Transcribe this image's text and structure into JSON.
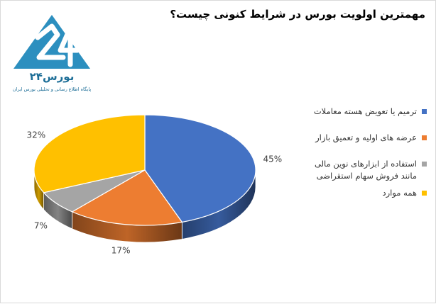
{
  "chart_data": {
    "type": "pie",
    "title": "مهمترین اولویت بورس در شرایط کنونی چیست؟",
    "categories": [
      "ترمیم یا تعویض هسته معاملات",
      "عرضه های اولیه و تعمیق بازار",
      "استفاده از ابزارهای نوین مالی مانند فروش سهام استقراضی",
      "همه موارد"
    ],
    "values": [
      45,
      17,
      7,
      32
    ],
    "value_labels": [
      "45%",
      "17%",
      "7%",
      "32%"
    ],
    "colors": [
      "#4472C4",
      "#ED7D31",
      "#A5A5A5",
      "#FFC000"
    ],
    "legend_position": "right",
    "style": "3d-pie"
  },
  "logo": {
    "brand_text": "بورس۲۴",
    "tagline": "پایگاه اطلاع رسانی و تحلیلی بورس ایران"
  }
}
